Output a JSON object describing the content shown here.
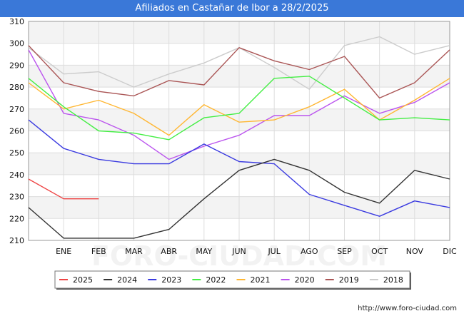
{
  "title": "Afiliados en Castañar de Ibor a 28/2/2025",
  "footer": "http://www.foro-ciudad.com",
  "chart_data": {
    "type": "line",
    "title": "Afiliados en Castañar de Ibor a 28/2/2025",
    "categories": [
      "",
      "ENE",
      "FEB",
      "MAR",
      "ABR",
      "MAY",
      "JUN",
      "JUL",
      "AGO",
      "SEP",
      "OCT",
      "NOV",
      "DIC"
    ],
    "ylim": [
      210,
      310
    ],
    "yticks": [
      210,
      220,
      230,
      240,
      250,
      260,
      270,
      280,
      290,
      300,
      310
    ],
    "grid": true,
    "legend_position": "bottom",
    "series": [
      {
        "name": "2025",
        "color": "#ee4444",
        "values": [
          238,
          229,
          229,
          null,
          null,
          null,
          null,
          null,
          null,
          null,
          null,
          null,
          null
        ]
      },
      {
        "name": "2024",
        "color": "#333333",
        "values": [
          225,
          211,
          211,
          211,
          215,
          229,
          242,
          247,
          242,
          232,
          227,
          242,
          238
        ]
      },
      {
        "name": "2023",
        "color": "#3b3be0",
        "values": [
          265,
          252,
          247,
          245,
          245,
          254,
          246,
          245,
          231,
          226,
          221,
          228,
          225
        ]
      },
      {
        "name": "2022",
        "color": "#44ee44",
        "values": [
          284,
          271,
          260,
          259,
          256,
          266,
          268,
          284,
          285,
          275,
          265,
          266,
          265
        ]
      },
      {
        "name": "2021",
        "color": "#ffb733",
        "values": [
          282,
          270,
          274,
          268,
          258,
          272,
          264,
          265,
          271,
          279,
          265,
          274,
          284
        ]
      },
      {
        "name": "2020",
        "color": "#bb55ee",
        "values": [
          297,
          268,
          265,
          258,
          247,
          253,
          258,
          267,
          267,
          276,
          268,
          273,
          282
        ]
      },
      {
        "name": "2019",
        "color": "#aa5555",
        "values": [
          299,
          282,
          278,
          276,
          283,
          281,
          298,
          292,
          288,
          294,
          275,
          282,
          297
        ]
      },
      {
        "name": "2018",
        "color": "#cccccc",
        "values": [
          298,
          286,
          287,
          280,
          286,
          291,
          298,
          289,
          279,
          299,
          303,
          295,
          299
        ]
      }
    ]
  }
}
